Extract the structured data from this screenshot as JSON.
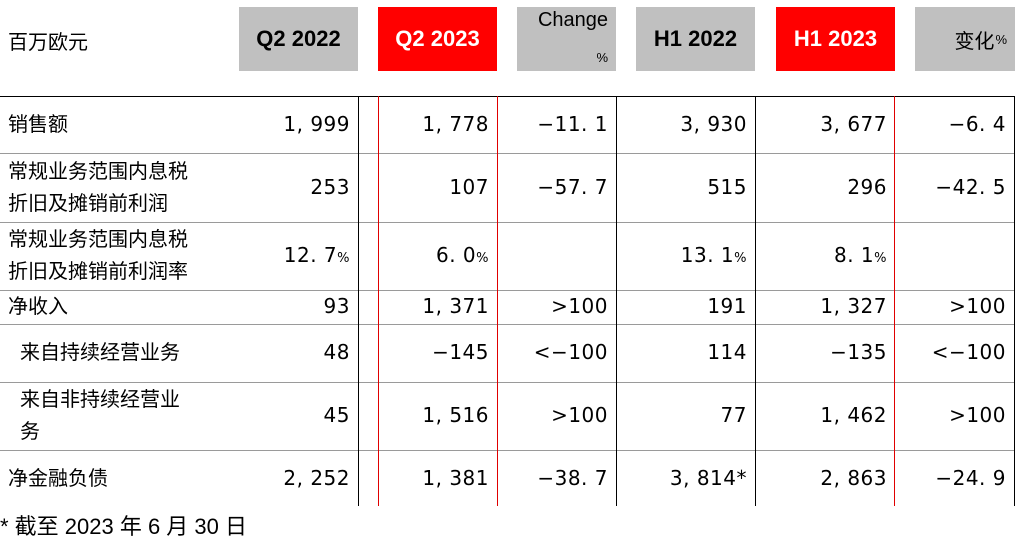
{
  "header": {
    "unit_label": "百万欧元",
    "columns": [
      {
        "label": "Q2  2022",
        "style": "grey"
      },
      {
        "label": "Q2  2023",
        "style": "red"
      },
      {
        "label": "Change",
        "sub": "%",
        "style": "grey-pct"
      },
      {
        "label": "H1  2022",
        "style": "grey"
      },
      {
        "label": "H1  2023",
        "style": "red"
      },
      {
        "label": "变化",
        "sub": "%",
        "style": "grey-right"
      }
    ]
  },
  "rows": [
    {
      "label_lines": [
        "销售额"
      ],
      "indent": false,
      "values": [
        "1, 999",
        "1, 778",
        "−11. 1",
        "3, 930",
        "3, 677",
        "−6. 4"
      ]
    },
    {
      "label_lines": [
        "常规业务范围内息税",
        "折旧及摊销前利润"
      ],
      "indent": false,
      "values": [
        "253",
        "107",
        "−57. 7",
        "515",
        "296",
        "−42. 5"
      ]
    },
    {
      "label_lines": [
        "常规业务范围内息税",
        "折旧及摊销前利润率"
      ],
      "indent": false,
      "values": [
        "12. 7%",
        "6. 0%",
        "",
        "13. 1%",
        "8. 1%",
        ""
      ]
    },
    {
      "label_lines": [
        "净收入"
      ],
      "indent": false,
      "values": [
        "93",
        "1, 371",
        ">100",
        "191",
        "1, 327",
        ">100"
      ]
    },
    {
      "label_lines": [
        "来自持续经营业务"
      ],
      "indent": true,
      "values": [
        "48",
        "−145",
        "<−100",
        "114",
        "−135",
        "<−100"
      ]
    },
    {
      "label_lines": [
        "来自非持续经营业",
        "务"
      ],
      "indent": true,
      "values": [
        "45",
        "1, 516",
        ">100",
        "77",
        "1, 462",
        ">100"
      ]
    },
    {
      "label_lines": [
        "净金融负债"
      ],
      "indent": false,
      "values": [
        "2, 252",
        "1, 381",
        "−38. 7",
        "3, 814*",
        "2, 863",
        "−24. 9"
      ]
    }
  ],
  "footnote": "*  截至 2023 年 6 月 30 日",
  "colors": {
    "highlight": "#ff0000",
    "header_grey": "#c0c0c0"
  }
}
